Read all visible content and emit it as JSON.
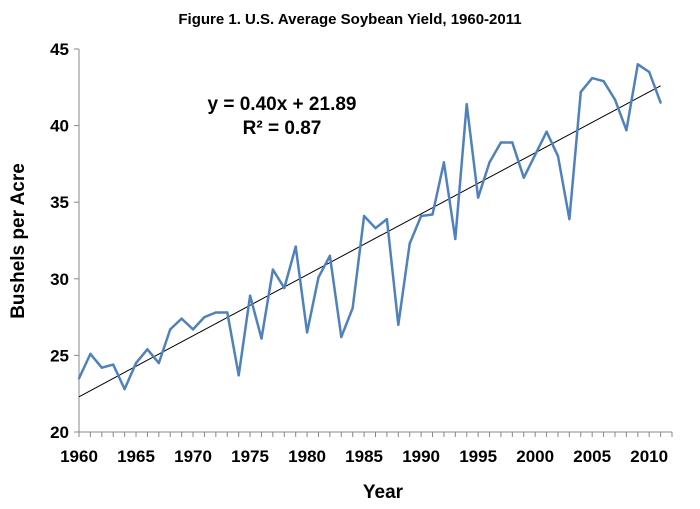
{
  "chart_data": {
    "type": "line",
    "title": "Figure 1. U.S. Average Soybean Yield, 1960-2011",
    "xlabel": "Year",
    "ylabel": "Bushels per Acre",
    "xlim": [
      1960,
      2012
    ],
    "ylim": [
      20,
      45
    ],
    "x_ticks": [
      "1960",
      "1965",
      "1970",
      "1975",
      "1980",
      "1985",
      "1990",
      "1995",
      "2000",
      "2005",
      "2010"
    ],
    "y_ticks": [
      "20",
      "25",
      "30",
      "35",
      "40",
      "45"
    ],
    "grid": false,
    "legend": "none",
    "series": [
      {
        "color": "#4f81bd",
        "x": [
          1960,
          1961,
          1962,
          1963,
          1964,
          1965,
          1966,
          1967,
          1968,
          1969,
          1970,
          1971,
          1972,
          1973,
          1974,
          1975,
          1976,
          1977,
          1978,
          1979,
          1980,
          1981,
          1982,
          1983,
          1984,
          1985,
          1986,
          1987,
          1988,
          1989,
          1990,
          1991,
          1992,
          1993,
          1994,
          1995,
          1996,
          1997,
          1998,
          1999,
          2000,
          2001,
          2002,
          2003,
          2004,
          2005,
          2006,
          2007,
          2008,
          2009,
          2010,
          2011
        ],
        "y": [
          23.5,
          25.1,
          24.2,
          24.4,
          22.8,
          24.5,
          25.4,
          24.5,
          26.7,
          27.4,
          26.7,
          27.5,
          27.8,
          27.8,
          23.7,
          28.9,
          26.1,
          30.6,
          29.4,
          32.1,
          26.5,
          30.1,
          31.5,
          26.2,
          28.1,
          34.1,
          33.3,
          33.9,
          27.0,
          32.3,
          34.1,
          34.2,
          37.6,
          32.6,
          41.4,
          35.3,
          37.6,
          38.9,
          38.9,
          36.6,
          38.1,
          39.6,
          38.0,
          33.9,
          42.2,
          43.1,
          42.9,
          41.7,
          39.7,
          44.0,
          43.5,
          41.5
        ]
      }
    ],
    "trendline": {
      "type": "linear",
      "color": "#000000",
      "equation": "y = 0.40x + 21.89",
      "r_squared": "R² = 0.87",
      "x": [
        1960,
        2011
      ],
      "y": [
        22.3,
        42.6
      ]
    }
  }
}
